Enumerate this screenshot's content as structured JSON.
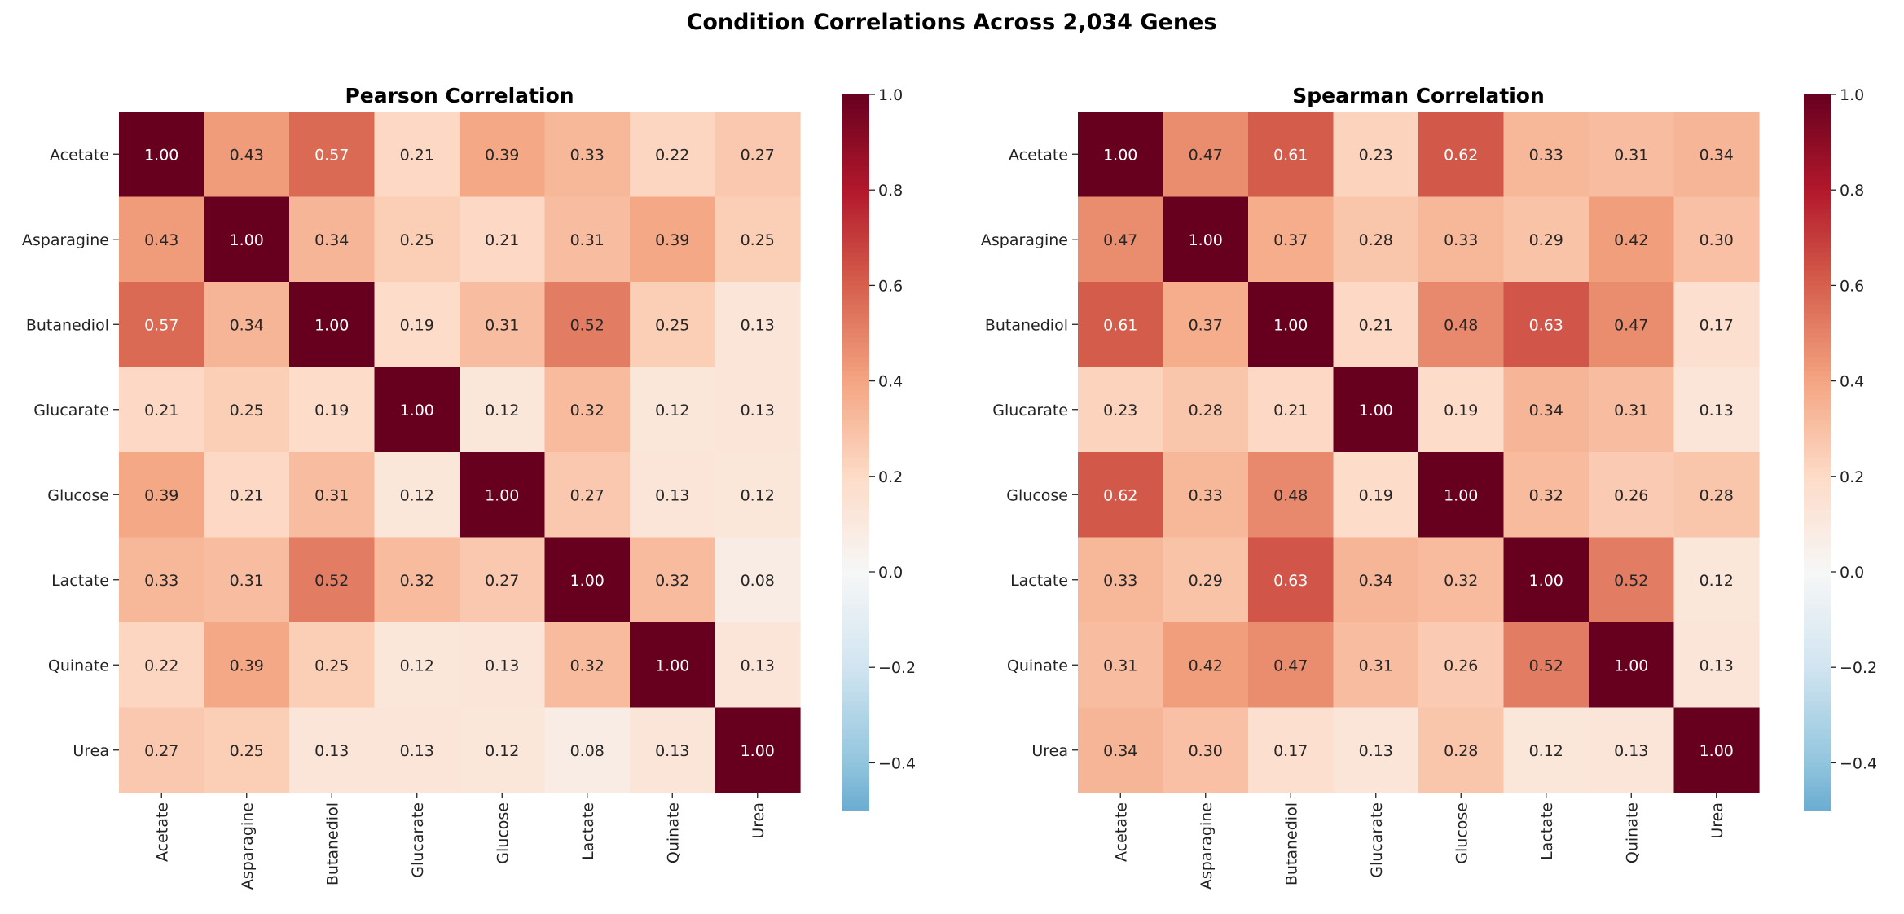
{
  "title": "Condition Correlations Across 2,034 Genes",
  "chart_data": [
    {
      "type": "heatmap",
      "title": "Pearson Correlation",
      "labels": [
        "Acetate",
        "Asparagine",
        "Butanediol",
        "Glucarate",
        "Glucose",
        "Lactate",
        "Quinate",
        "Urea"
      ],
      "values": [
        [
          1.0,
          0.43,
          0.57,
          0.21,
          0.39,
          0.33,
          0.22,
          0.27
        ],
        [
          0.43,
          1.0,
          0.34,
          0.25,
          0.21,
          0.31,
          0.39,
          0.25
        ],
        [
          0.57,
          0.34,
          1.0,
          0.19,
          0.31,
          0.52,
          0.25,
          0.13
        ],
        [
          0.21,
          0.25,
          0.19,
          1.0,
          0.12,
          0.32,
          0.12,
          0.13
        ],
        [
          0.39,
          0.21,
          0.31,
          0.12,
          1.0,
          0.27,
          0.13,
          0.12
        ],
        [
          0.33,
          0.31,
          0.52,
          0.32,
          0.27,
          1.0,
          0.32,
          0.08
        ],
        [
          0.22,
          0.39,
          0.25,
          0.12,
          0.13,
          0.32,
          1.0,
          0.13
        ],
        [
          0.27,
          0.25,
          0.13,
          0.13,
          0.12,
          0.08,
          0.13,
          1.0
        ]
      ],
      "colormap": "RdBu_r",
      "center": 0,
      "colorbar_range": [
        -0.5,
        1.0
      ],
      "colorbar_ticks": [
        "1.0",
        "0.8",
        "0.6",
        "0.4",
        "0.2",
        "0.0",
        "−0.2",
        "−0.4"
      ]
    },
    {
      "type": "heatmap",
      "title": "Spearman Correlation",
      "labels": [
        "Acetate",
        "Asparagine",
        "Butanediol",
        "Glucarate",
        "Glucose",
        "Lactate",
        "Quinate",
        "Urea"
      ],
      "values": [
        [
          1.0,
          0.47,
          0.61,
          0.23,
          0.62,
          0.33,
          0.31,
          0.34
        ],
        [
          0.47,
          1.0,
          0.37,
          0.28,
          0.33,
          0.29,
          0.42,
          0.3
        ],
        [
          0.61,
          0.37,
          1.0,
          0.21,
          0.48,
          0.63,
          0.47,
          0.17
        ],
        [
          0.23,
          0.28,
          0.21,
          1.0,
          0.19,
          0.34,
          0.31,
          0.13
        ],
        [
          0.62,
          0.33,
          0.48,
          0.19,
          1.0,
          0.32,
          0.26,
          0.28
        ],
        [
          0.33,
          0.29,
          0.63,
          0.34,
          0.32,
          1.0,
          0.52,
          0.12
        ],
        [
          0.31,
          0.42,
          0.47,
          0.31,
          0.26,
          0.52,
          1.0,
          0.13
        ],
        [
          0.34,
          0.3,
          0.17,
          0.13,
          0.28,
          0.12,
          0.13,
          1.0
        ]
      ],
      "colormap": "RdBu_r",
      "center": 0,
      "colorbar_range": [
        -0.5,
        1.0
      ],
      "colorbar_ticks": [
        "1.0",
        "0.8",
        "0.6",
        "0.4",
        "0.2",
        "0.0",
        "−0.2",
        "−0.4"
      ]
    }
  ]
}
